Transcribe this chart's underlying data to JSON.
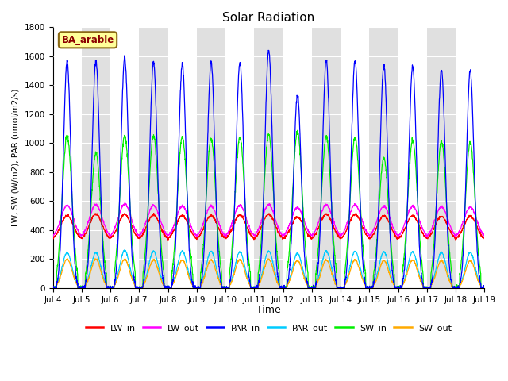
{
  "title": "Solar Radiation",
  "xlabel": "Time",
  "ylabel": "LW, SW (W/m2), PAR (umol/m2/s)",
  "annotation": "BA_arable",
  "ylim": [
    0,
    1800
  ],
  "series_names": [
    "LW_in",
    "LW_out",
    "PAR_in",
    "PAR_out",
    "SW_in",
    "SW_out"
  ],
  "series_colors": [
    "#ff0000",
    "#ff00ff",
    "#0000ff",
    "#00ccff",
    "#00ee00",
    "#ffaa00"
  ],
  "background_color": "#ffffff",
  "band_color_odd": "#e0e0e0",
  "band_color_even": "#ffffff",
  "figsize": [
    6.4,
    4.8
  ],
  "dpi": 100,
  "start_day": 4,
  "end_day": 19,
  "n_days": 15,
  "points_per_day": 144,
  "lw_in_base": 330,
  "lw_in_peak_add": 170,
  "lw_out_base": 345,
  "lw_out_peak_add": 225,
  "par_in_peaks": [
    1560,
    1570,
    1590,
    1560,
    1540,
    1560,
    1560,
    1640,
    1330,
    1570,
    1570,
    1540,
    1530,
    1510,
    1500
  ],
  "sw_in_peaks": [
    1050,
    930,
    1050,
    1050,
    1040,
    1030,
    1040,
    1060,
    1080,
    1040,
    1040,
    900,
    1020,
    1010,
    1000
  ],
  "sw_out_peaks": [
    200,
    200,
    200,
    195,
    195,
    195,
    195,
    200,
    190,
    195,
    195,
    190,
    195,
    190,
    190
  ],
  "par_out_peaks": [
    245,
    245,
    260,
    255,
    255,
    255,
    250,
    255,
    240,
    255,
    255,
    250,
    250,
    245,
    245
  ],
  "lw_in_peaks": [
    500,
    510,
    510,
    505,
    500,
    500,
    505,
    510,
    490,
    510,
    510,
    500,
    500,
    495,
    495
  ],
  "lw_out_peaks": [
    570,
    575,
    580,
    570,
    565,
    565,
    570,
    575,
    555,
    575,
    575,
    565,
    565,
    560,
    560
  ]
}
